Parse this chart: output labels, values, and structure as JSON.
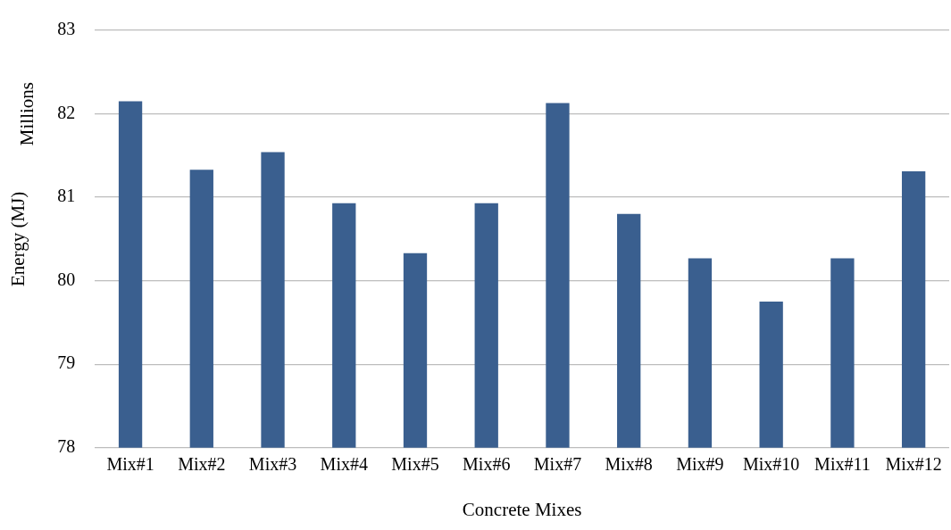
{
  "chart_data": {
    "type": "bar",
    "xlabel": "Concrete Mixes",
    "ylabel": "Energy (MJ)",
    "annotations": [
      "Millions"
    ],
    "categories": [
      "Mix#1",
      "Mix#2",
      "Mix#3",
      "Mix#4",
      "Mix#5",
      "Mix#6",
      "Mix#7",
      "Mix#8",
      "Mix#9",
      "Mix#10",
      "Mix#11",
      "Mix#12"
    ],
    "values": [
      82.15,
      81.33,
      81.54,
      80.93,
      80.33,
      80.93,
      82.13,
      80.8,
      80.27,
      79.75,
      80.27,
      81.31
    ],
    "color": "#3a5f8f",
    "ylim": [
      78,
      83
    ],
    "yticks": [
      78,
      79,
      80,
      81,
      82,
      83
    ],
    "grid": "y",
    "legend": false
  }
}
